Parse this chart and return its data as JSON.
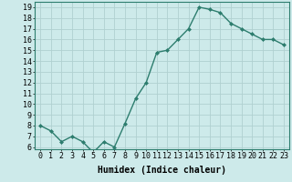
{
  "x": [
    0,
    1,
    2,
    3,
    4,
    5,
    6,
    7,
    8,
    9,
    10,
    11,
    12,
    13,
    14,
    15,
    16,
    17,
    18,
    19,
    20,
    21,
    22,
    23
  ],
  "y": [
    8.0,
    7.5,
    6.5,
    7.0,
    6.5,
    5.5,
    6.5,
    6.0,
    8.2,
    10.5,
    12.0,
    14.8,
    15.0,
    16.0,
    17.0,
    19.0,
    18.8,
    18.5,
    17.5,
    17.0,
    16.5,
    16.0,
    16.0,
    15.5
  ],
  "line_color": "#2d7d6e",
  "marker": "D",
  "marker_size": 2.0,
  "bg_color": "#cdeaea",
  "grid_color": "#b0d0d0",
  "xlabel": "Humidex (Indice chaleur)",
  "ylabel": "",
  "title": "",
  "ylim_min": 5.8,
  "ylim_max": 19.5,
  "xlim_min": -0.5,
  "xlim_max": 23.5,
  "yticks": [
    6,
    7,
    8,
    9,
    10,
    11,
    12,
    13,
    14,
    15,
    16,
    17,
    18,
    19
  ],
  "xticks": [
    0,
    1,
    2,
    3,
    4,
    5,
    6,
    7,
    8,
    9,
    10,
    11,
    12,
    13,
    14,
    15,
    16,
    17,
    18,
    19,
    20,
    21,
    22,
    23
  ],
  "tick_label_fontsize": 6,
  "xlabel_fontsize": 7,
  "linewidth": 1.0
}
